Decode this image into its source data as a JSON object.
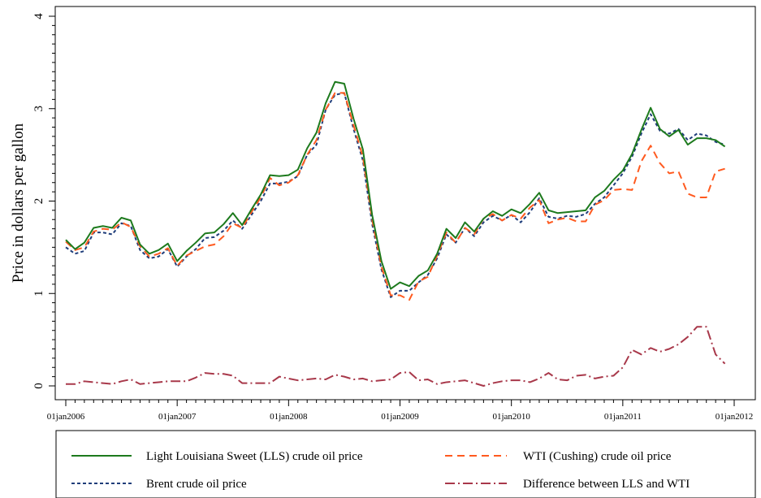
{
  "chart_data": {
    "type": "line",
    "title": "",
    "xlabel": "",
    "ylabel": "Price in dollars per gallon",
    "xlim": [
      "2006-01",
      "2011-12"
    ],
    "ylim": [
      0,
      4
    ],
    "yticks": [
      0,
      1,
      2,
      3,
      4
    ],
    "xticks": [
      "01jan2006",
      "01jan2007",
      "01jan2008",
      "01jan2009",
      "01jan2010",
      "01jan2011",
      "01jan2012"
    ],
    "grid": false,
    "legend_position": "bottom",
    "months": [
      "2006-01",
      "2006-02",
      "2006-03",
      "2006-04",
      "2006-05",
      "2006-06",
      "2006-07",
      "2006-08",
      "2006-09",
      "2006-10",
      "2006-11",
      "2006-12",
      "2007-01",
      "2007-02",
      "2007-03",
      "2007-04",
      "2007-05",
      "2007-06",
      "2007-07",
      "2007-08",
      "2007-09",
      "2007-10",
      "2007-11",
      "2007-12",
      "2008-01",
      "2008-02",
      "2008-03",
      "2008-04",
      "2008-05",
      "2008-06",
      "2008-07",
      "2008-08",
      "2008-09",
      "2008-10",
      "2008-11",
      "2008-12",
      "2009-01",
      "2009-02",
      "2009-03",
      "2009-04",
      "2009-05",
      "2009-06",
      "2009-07",
      "2009-08",
      "2009-09",
      "2009-10",
      "2009-11",
      "2009-12",
      "2010-01",
      "2010-02",
      "2010-03",
      "2010-04",
      "2010-05",
      "2010-06",
      "2010-07",
      "2010-08",
      "2010-09",
      "2010-10",
      "2010-11",
      "2010-12",
      "2011-01",
      "2011-02",
      "2011-03",
      "2011-04",
      "2011-05",
      "2011-06",
      "2011-07",
      "2011-08",
      "2011-09",
      "2011-10",
      "2011-11",
      "2011-12"
    ],
    "series": [
      {
        "name": "Light Louisiana Sweet (LLS) crude oil price",
        "color": "#1d7a1d",
        "style": "solid",
        "values": [
          1.58,
          1.48,
          1.55,
          1.71,
          1.73,
          1.71,
          1.82,
          1.79,
          1.53,
          1.43,
          1.47,
          1.54,
          1.35,
          1.46,
          1.55,
          1.65,
          1.66,
          1.75,
          1.87,
          1.74,
          1.91,
          2.07,
          2.28,
          2.27,
          2.28,
          2.34,
          2.57,
          2.74,
          3.06,
          3.29,
          3.27,
          2.89,
          2.56,
          1.85,
          1.35,
          1.05,
          1.12,
          1.08,
          1.19,
          1.25,
          1.43,
          1.7,
          1.6,
          1.77,
          1.67,
          1.81,
          1.89,
          1.84,
          1.91,
          1.87,
          1.97,
          2.09,
          1.9,
          1.87,
          1.88,
          1.89,
          1.9,
          2.04,
          2.11,
          2.23,
          2.33,
          2.51,
          2.77,
          3.01,
          2.78,
          2.7,
          2.77,
          2.61,
          2.68,
          2.68,
          2.66,
          2.59
        ]
      },
      {
        "name": "WTI (Cushing) crude oil price",
        "color": "#ff5a1f",
        "style": "dashed",
        "values": [
          1.56,
          1.47,
          1.5,
          1.67,
          1.7,
          1.69,
          1.77,
          1.72,
          1.51,
          1.4,
          1.43,
          1.49,
          1.3,
          1.41,
          1.46,
          1.51,
          1.53,
          1.62,
          1.76,
          1.71,
          1.88,
          2.04,
          2.25,
          2.17,
          2.2,
          2.28,
          2.5,
          2.66,
          2.99,
          3.17,
          3.17,
          2.82,
          2.48,
          1.8,
          1.29,
          0.98,
          0.98,
          0.93,
          1.13,
          1.18,
          1.41,
          1.66,
          1.55,
          1.71,
          1.64,
          1.81,
          1.86,
          1.79,
          1.85,
          1.81,
          1.93,
          2.01,
          1.76,
          1.8,
          1.82,
          1.78,
          1.78,
          1.96,
          2.01,
          2.12,
          2.13,
          2.12,
          2.43,
          2.6,
          2.41,
          2.3,
          2.32,
          2.08,
          2.04,
          2.04,
          2.32,
          2.35
        ]
      },
      {
        "name": "Brent crude oil price",
        "color": "#1f3d7a",
        "style": "dotted",
        "values": [
          1.5,
          1.43,
          1.46,
          1.66,
          1.66,
          1.64,
          1.76,
          1.73,
          1.47,
          1.38,
          1.4,
          1.48,
          1.29,
          1.4,
          1.48,
          1.6,
          1.61,
          1.68,
          1.79,
          1.7,
          1.85,
          2.0,
          2.19,
          2.19,
          2.21,
          2.27,
          2.5,
          2.61,
          2.99,
          3.15,
          3.17,
          2.78,
          2.44,
          1.75,
          1.26,
          0.96,
          1.03,
          1.03,
          1.12,
          1.2,
          1.38,
          1.64,
          1.55,
          1.71,
          1.62,
          1.77,
          1.84,
          1.79,
          1.85,
          1.77,
          1.88,
          2.03,
          1.83,
          1.81,
          1.84,
          1.83,
          1.86,
          1.97,
          2.04,
          2.17,
          2.3,
          2.48,
          2.73,
          2.94,
          2.76,
          2.73,
          2.78,
          2.66,
          2.73,
          2.71,
          2.64,
          2.61
        ]
      },
      {
        "name": "Difference between LLS and WTI",
        "color": "#a8384a",
        "style": "dashdot",
        "values": [
          0.02,
          0.02,
          0.05,
          0.04,
          0.03,
          0.02,
          0.05,
          0.07,
          0.02,
          0.03,
          0.04,
          0.05,
          0.05,
          0.05,
          0.09,
          0.14,
          0.13,
          0.13,
          0.11,
          0.03,
          0.03,
          0.03,
          0.03,
          0.1,
          0.08,
          0.06,
          0.07,
          0.08,
          0.07,
          0.12,
          0.1,
          0.07,
          0.08,
          0.05,
          0.06,
          0.07,
          0.14,
          0.15,
          0.06,
          0.07,
          0.02,
          0.04,
          0.05,
          0.06,
          0.03,
          0.0,
          0.03,
          0.05,
          0.06,
          0.06,
          0.04,
          0.08,
          0.14,
          0.07,
          0.06,
          0.11,
          0.12,
          0.08,
          0.1,
          0.11,
          0.2,
          0.39,
          0.34,
          0.41,
          0.37,
          0.4,
          0.45,
          0.53,
          0.64,
          0.64,
          0.34,
          0.24
        ]
      }
    ]
  }
}
